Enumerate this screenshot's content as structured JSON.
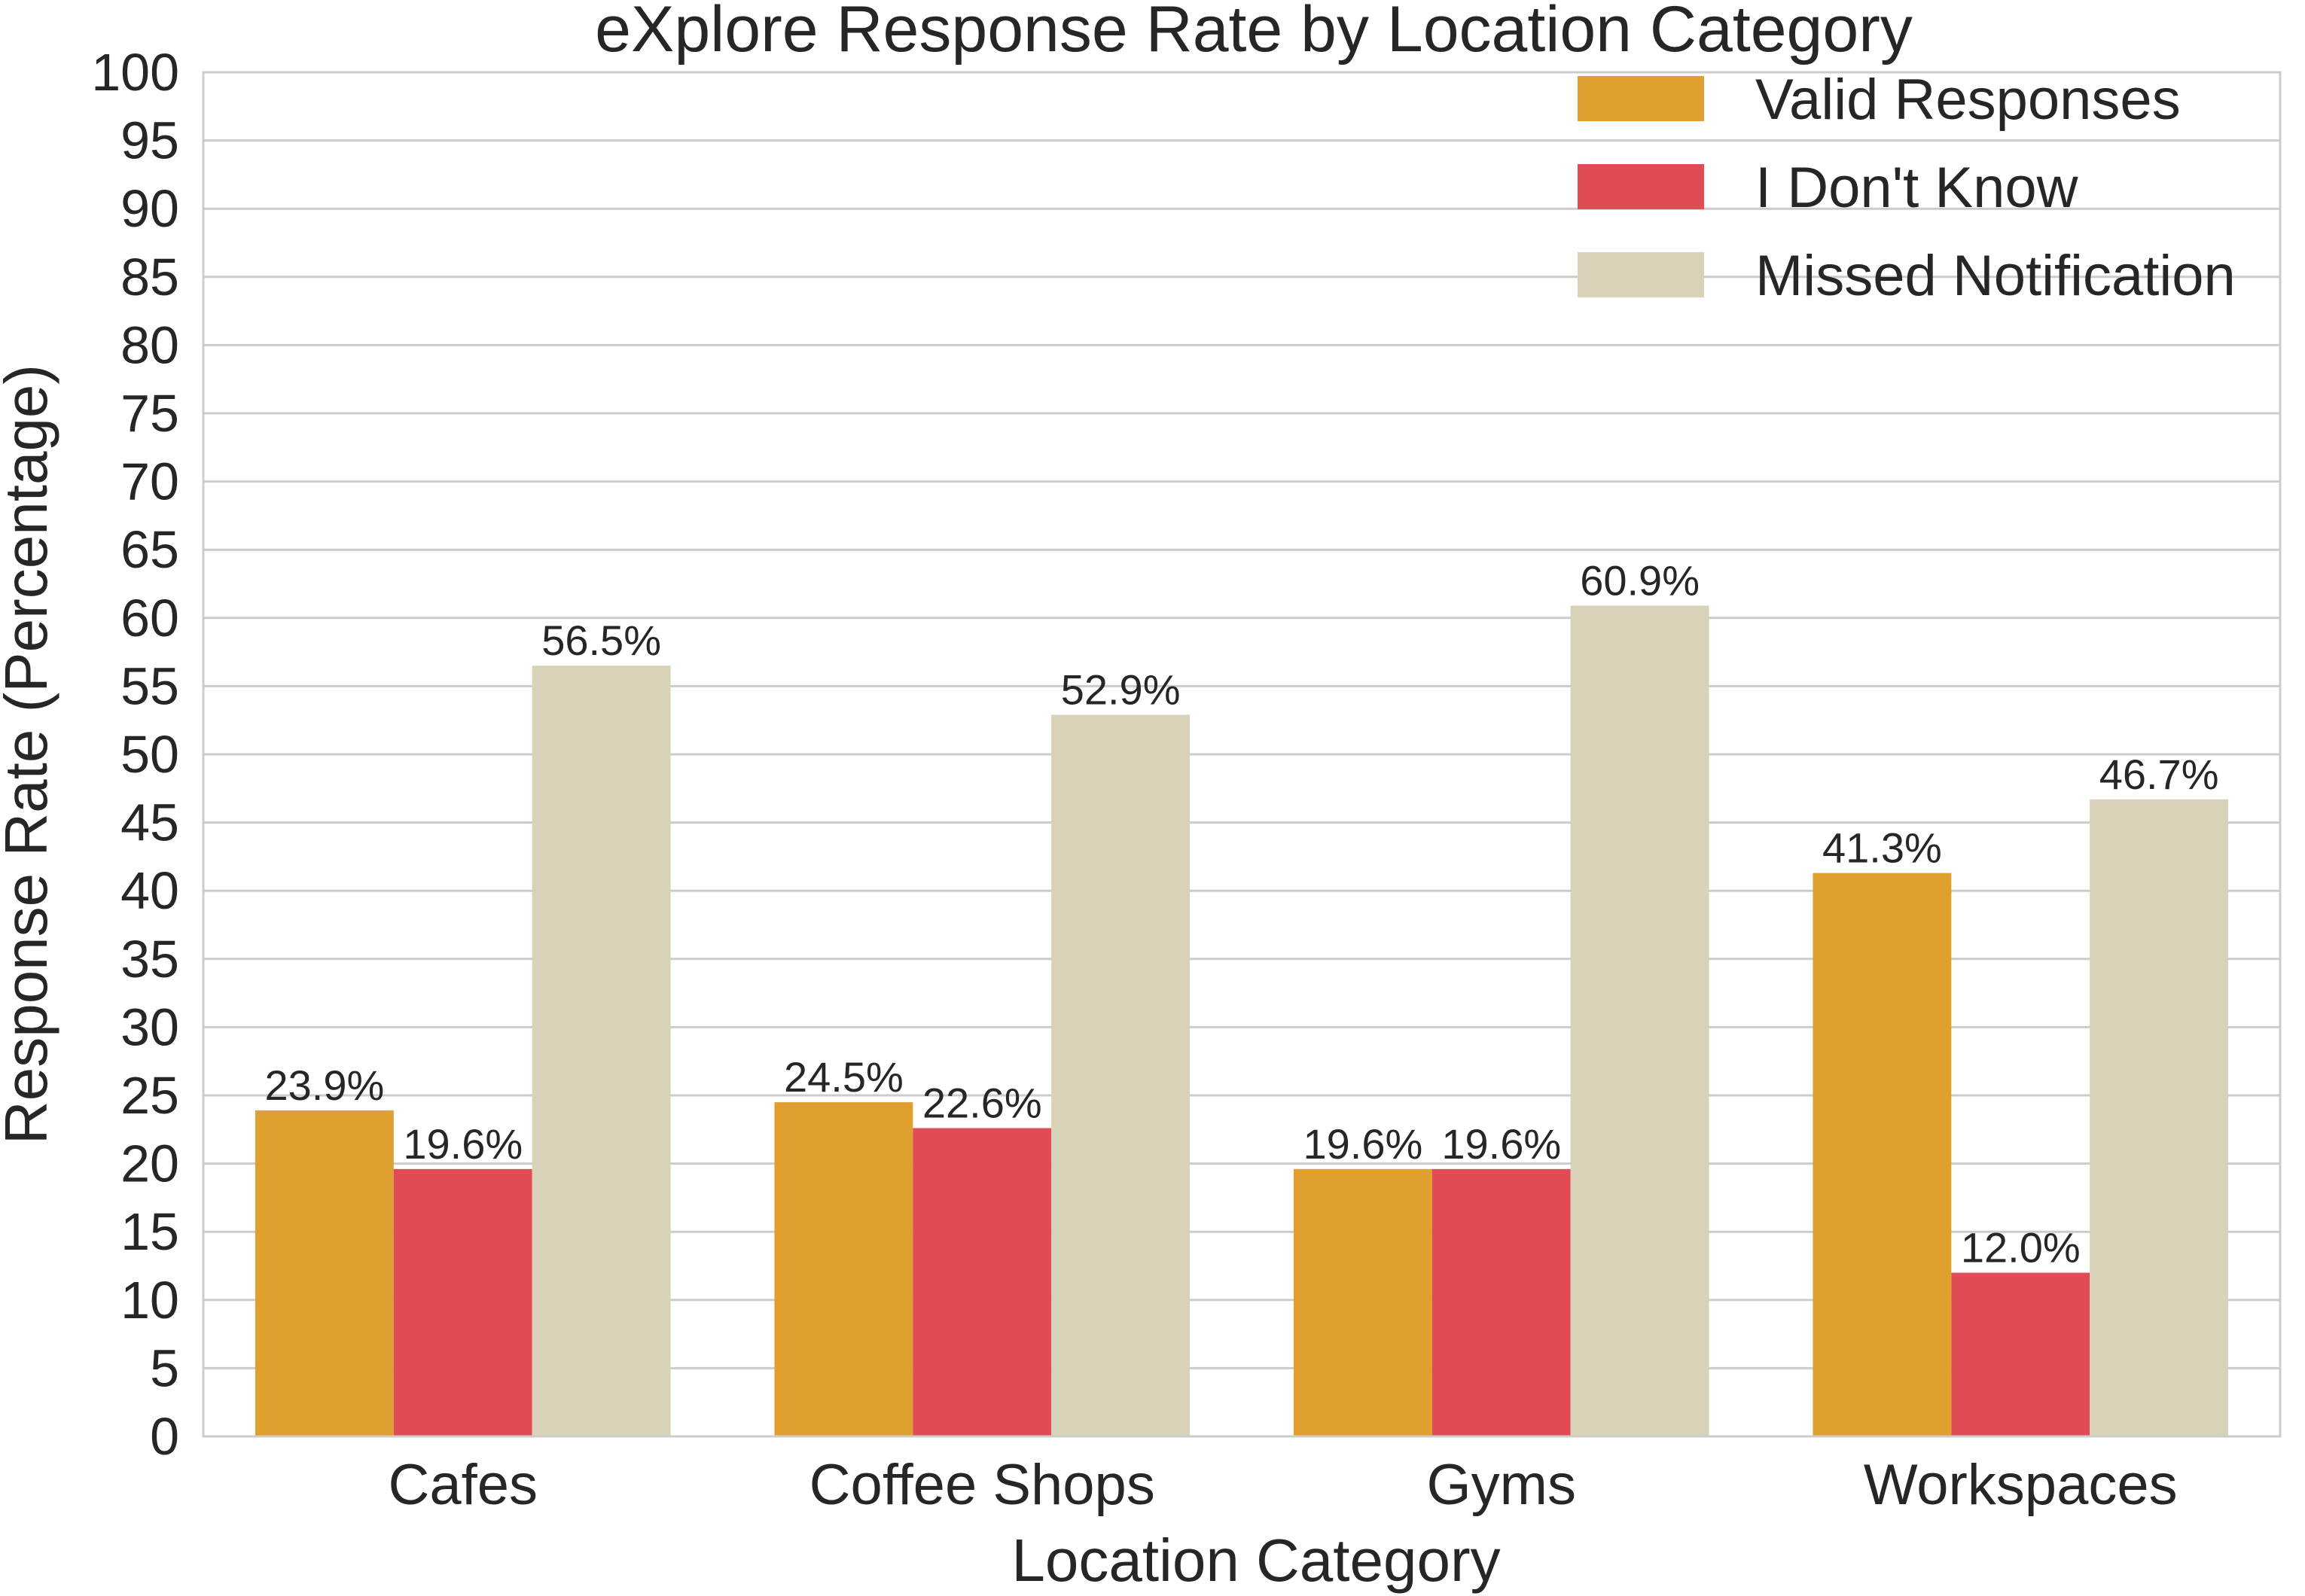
{
  "chart_data": {
    "type": "bar",
    "title": "eXplore Response Rate by Location Category",
    "xlabel": "Location Category",
    "ylabel": "Response Rate (Percentage)",
    "ylim": [
      0,
      100
    ],
    "yticks": [
      0,
      5,
      10,
      15,
      20,
      25,
      30,
      35,
      40,
      45,
      50,
      55,
      60,
      65,
      70,
      75,
      80,
      85,
      90,
      95,
      100
    ],
    "grid": true,
    "legend_position": "top-right",
    "categories": [
      "Cafes",
      "Coffee Shops",
      "Gyms",
      "Workspaces"
    ],
    "series": [
      {
        "name": "Valid Responses",
        "color": "#e0a030",
        "values": [
          23.9,
          24.5,
          19.6,
          41.3
        ],
        "labels": [
          "23.9%",
          "24.5%",
          "19.6%",
          "41.3%"
        ]
      },
      {
        "name": "I Don't Know",
        "color": "#e04b55",
        "values": [
          19.6,
          22.6,
          19.6,
          12.0
        ],
        "labels": [
          "19.6%",
          "22.6%",
          "19.6%",
          "12.0%"
        ]
      },
      {
        "name": "Missed Notification",
        "color": "#d8d2b9",
        "values": [
          56.5,
          52.9,
          60.9,
          46.7
        ],
        "labels": [
          "56.5%",
          "52.9%",
          "60.9%",
          "46.7%"
        ]
      }
    ]
  }
}
